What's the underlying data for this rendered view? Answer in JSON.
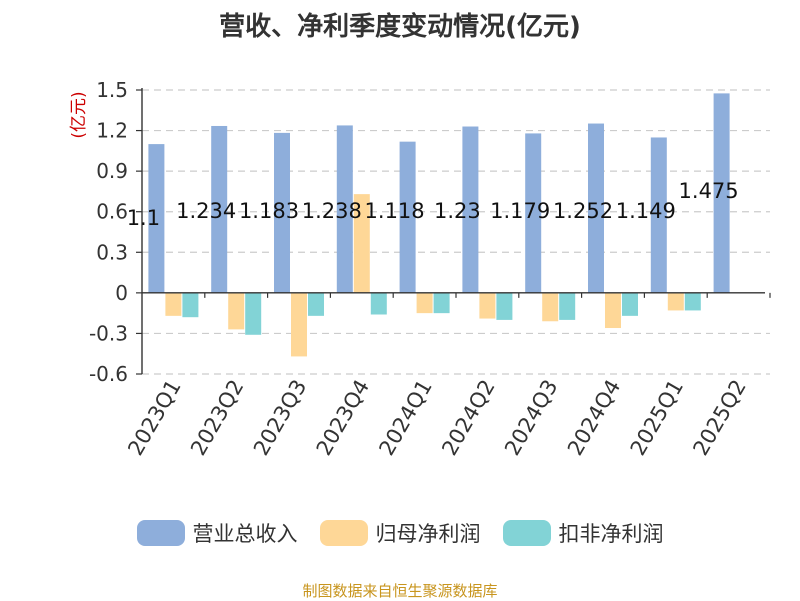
{
  "chart_data": {
    "type": "bar",
    "title": "营收、净利季度变动情况(亿元)",
    "ylabel": "(亿元)",
    "ylim": [
      -0.6,
      1.5
    ],
    "yticks": [
      "1.5",
      "1.2",
      "0.9",
      "0.6",
      "0.3",
      "0",
      "-0.3",
      "-0.6"
    ],
    "grid": true,
    "legend_position": "bottom",
    "categories": [
      "2023Q1",
      "2023Q2",
      "2023Q3",
      "2023Q4",
      "2024Q1",
      "2024Q2",
      "2024Q3",
      "2024Q4",
      "2025Q1",
      "2025Q2"
    ],
    "series": [
      {
        "name": "营业总收入",
        "color": "#8eaedb",
        "values": [
          1.1,
          1.234,
          1.183,
          1.238,
          1.118,
          1.23,
          1.179,
          1.252,
          1.149,
          1.475
        ]
      },
      {
        "name": "归母净利润",
        "color": "#fed797",
        "values": [
          -0.17,
          -0.27,
          -0.47,
          0.73,
          -0.15,
          -0.19,
          -0.21,
          -0.26,
          -0.13,
          0.0
        ]
      },
      {
        "name": "扣非净利润",
        "color": "#82d3d6",
        "values": [
          -0.18,
          -0.31,
          -0.17,
          -0.16,
          -0.15,
          -0.2,
          -0.2,
          -0.17,
          -0.13,
          0.0
        ]
      }
    ],
    "data_labels": [
      "1.1",
      "1.234",
      "1.183",
      "1.238",
      "1.118",
      "1.23",
      "1.179",
      "1.252",
      "1.149",
      "1.475"
    ]
  },
  "source_note": "制图数据来自恒生聚源数据库"
}
